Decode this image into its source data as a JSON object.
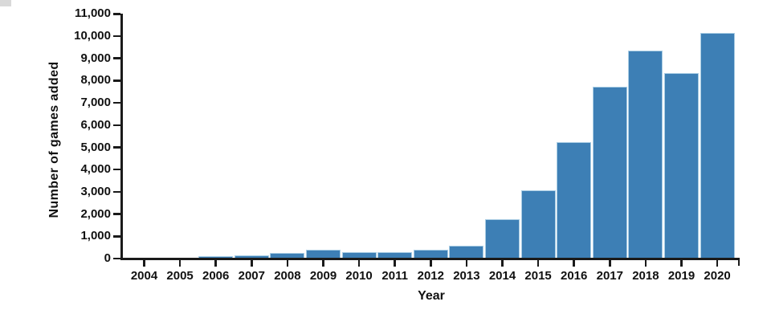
{
  "chart_data": {
    "type": "bar",
    "title": "",
    "xlabel": "Year",
    "ylabel": "Number of games added",
    "categories": [
      "2004",
      "2005",
      "2006",
      "2007",
      "2008",
      "2009",
      "2010",
      "2011",
      "2012",
      "2013",
      "2014",
      "2015",
      "2016",
      "2017",
      "2018",
      "2019",
      "2020"
    ],
    "values": [
      0,
      0,
      60,
      110,
      200,
      370,
      260,
      260,
      370,
      550,
      1750,
      3050,
      5200,
      7700,
      9300,
      8300,
      10100
    ],
    "ylim": [
      0,
      11000
    ],
    "ytick_step": 1000,
    "yticks": [
      "0",
      "1,000",
      "2,000",
      "3,000",
      "4,000",
      "5,000",
      "6,000",
      "7,000",
      "8,000",
      "9,000",
      "10,000",
      "11,000"
    ],
    "grid": "off",
    "legend": "none",
    "colors": {
      "bar_fill": "#3d7fb5",
      "bar_edge": "#a9cde4",
      "axis": "#1a1a1a",
      "text": "#111111"
    }
  }
}
